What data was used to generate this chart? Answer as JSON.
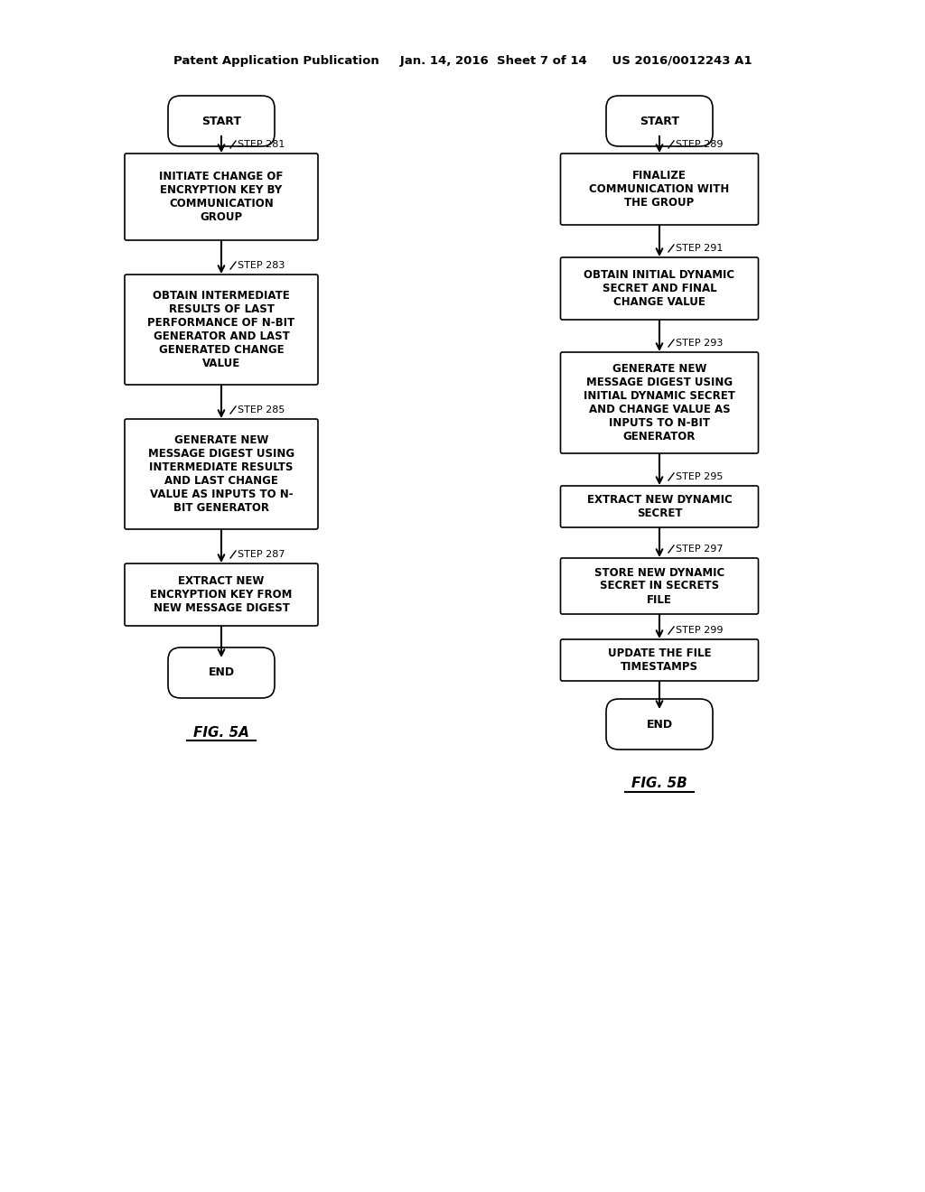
{
  "bg_color": "#ffffff",
  "header_text": "Patent Application Publication     Jan. 14, 2016  Sheet 7 of 14      US 2016/0012243 A1",
  "fig5a_label": "FIG. 5A",
  "fig5b_label": "FIG. 5B",
  "left_flow": {
    "start_label": "START",
    "steps": [
      {
        "step": "STEP 281",
        "text": "INITIATE CHANGE OF\nENCRYPTION KEY BY\nCOMMUNICATION\nGROUP"
      },
      {
        "step": "STEP 283",
        "text": "OBTAIN INTERMEDIATE\nRESULTS OF LAST\nPERFORMANCE OF N-BIT\nGENERATOR AND LAST\nGENERATED CHANGE\nVALUE"
      },
      {
        "step": "STEP 285",
        "text": "GENERATE NEW\nMESSAGE DIGEST USING\nINTERMEDIATE RESULTS\nAND LAST CHANGE\nVALUE AS INPUTS TO N-\nBIT GENERATOR"
      },
      {
        "step": "STEP 287",
        "text": "EXTRACT NEW\nENCRYPTION KEY FROM\nNEW MESSAGE DIGEST"
      }
    ],
    "end_label": "END"
  },
  "right_flow": {
    "start_label": "START",
    "steps": [
      {
        "step": "STEP 289",
        "text": "FINALIZE\nCOMMUNICATION WITH\nTHE GROUP"
      },
      {
        "step": "STEP 291",
        "text": "OBTAIN INITIAL DYNAMIC\nSECRET AND FINAL\nCHANGE VALUE"
      },
      {
        "step": "STEP 293",
        "text": "GENERATE NEW\nMESSAGE DIGEST USING\nINITIAL DYNAMIC SECRET\nAND CHANGE VALUE AS\nINPUTS TO N-BIT\nGENERATOR"
      },
      {
        "step": "STEP 295",
        "text": "EXTRACT NEW DYNAMIC\nSECRET"
      },
      {
        "step": "STEP 297",
        "text": "STORE NEW DYNAMIC\nSECRET IN SECRETS\nFILE"
      },
      {
        "step": "STEP 299",
        "text": "UPDATE THE FILE\nTIMESTAMPS"
      }
    ],
    "end_label": "END"
  }
}
